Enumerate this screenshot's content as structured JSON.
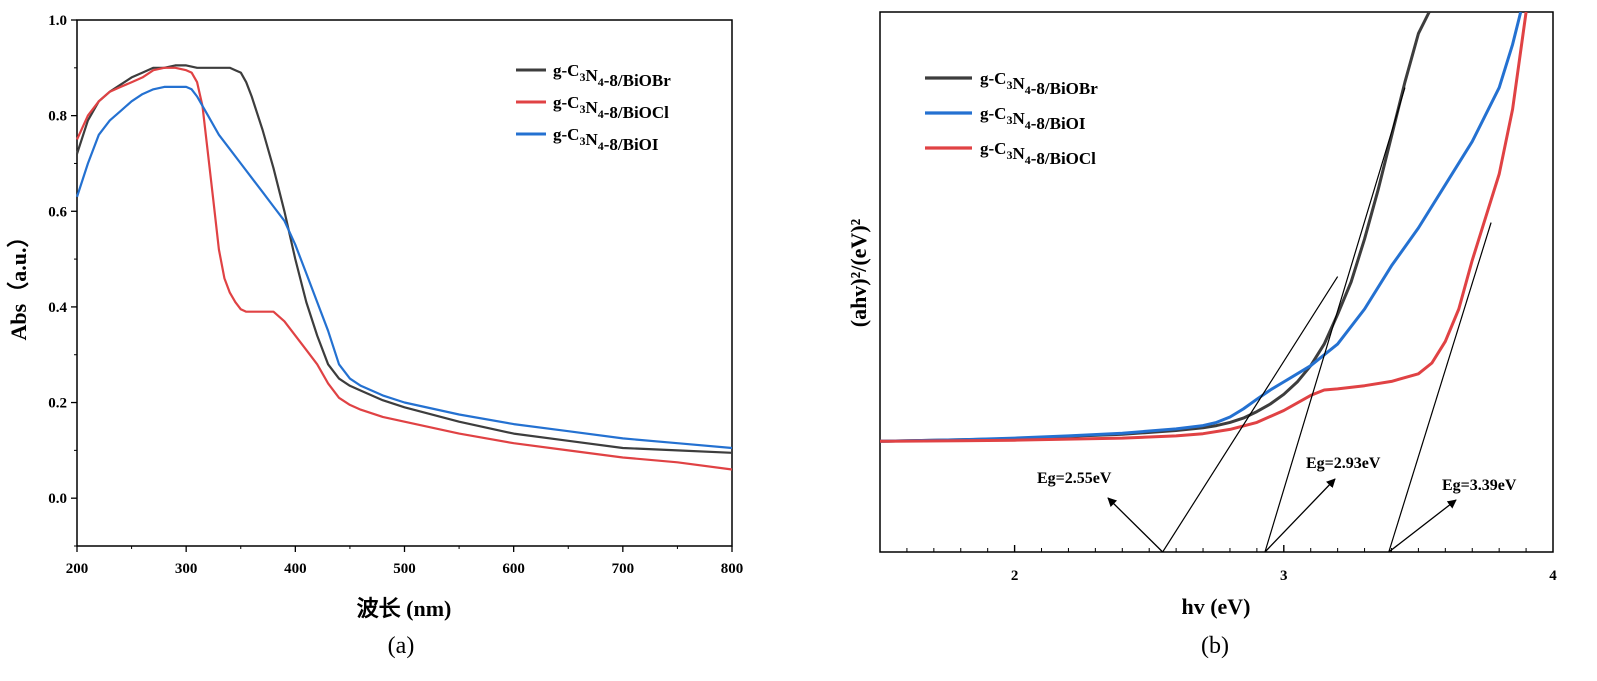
{
  "chart_data": [
    {
      "type": "line",
      "caption": "(a)",
      "xlabel": "波长 (nm)",
      "ylabel": "Abs（a.u.）",
      "xlim": [
        200,
        800
      ],
      "ylim": [
        -0.1,
        1.0
      ],
      "xticks": [
        "200",
        "300",
        "400",
        "500",
        "600",
        "700",
        "800"
      ],
      "yticks": [
        "0.0",
        "0.2",
        "0.4",
        "0.6",
        "0.8",
        "1.0"
      ],
      "legend_position": "top-right",
      "series": [
        {
          "name": "g-C₃N₄-8/BiOBr",
          "color": "#3d3d3d",
          "x": [
            200,
            210,
            220,
            230,
            240,
            250,
            260,
            270,
            280,
            290,
            300,
            310,
            320,
            330,
            340,
            345,
            350,
            355,
            360,
            370,
            380,
            390,
            400,
            410,
            420,
            430,
            440,
            450,
            460,
            480,
            500,
            550,
            600,
            650,
            700,
            750,
            800
          ],
          "y": [
            0.72,
            0.79,
            0.83,
            0.85,
            0.865,
            0.88,
            0.89,
            0.9,
            0.9,
            0.905,
            0.905,
            0.9,
            0.9,
            0.9,
            0.9,
            0.895,
            0.89,
            0.87,
            0.84,
            0.77,
            0.69,
            0.6,
            0.5,
            0.41,
            0.34,
            0.28,
            0.25,
            0.235,
            0.225,
            0.205,
            0.19,
            0.16,
            0.135,
            0.12,
            0.105,
            0.1,
            0.095
          ]
        },
        {
          "name": "g-C₃N₄-8/BiOCl",
          "color": "#e04244",
          "x": [
            200,
            210,
            220,
            230,
            240,
            250,
            260,
            270,
            280,
            290,
            300,
            305,
            310,
            315,
            320,
            325,
            330,
            335,
            340,
            345,
            350,
            355,
            360,
            370,
            380,
            390,
            400,
            410,
            420,
            430,
            440,
            450,
            460,
            480,
            500,
            550,
            600,
            650,
            700,
            750,
            800
          ],
          "y": [
            0.75,
            0.8,
            0.83,
            0.85,
            0.86,
            0.87,
            0.88,
            0.895,
            0.9,
            0.9,
            0.895,
            0.89,
            0.87,
            0.82,
            0.72,
            0.62,
            0.52,
            0.46,
            0.43,
            0.41,
            0.395,
            0.39,
            0.39,
            0.39,
            0.39,
            0.37,
            0.34,
            0.31,
            0.28,
            0.24,
            0.21,
            0.195,
            0.185,
            0.17,
            0.16,
            0.135,
            0.115,
            0.1,
            0.085,
            0.075,
            0.06
          ]
        },
        {
          "name": "g-C₃N₄-8/BiOI",
          "color": "#2471d1",
          "x": [
            200,
            210,
            220,
            230,
            240,
            250,
            260,
            270,
            280,
            290,
            300,
            305,
            310,
            320,
            330,
            340,
            350,
            360,
            370,
            380,
            390,
            400,
            410,
            420,
            430,
            440,
            450,
            460,
            480,
            500,
            550,
            600,
            650,
            700,
            750,
            800
          ],
          "y": [
            0.63,
            0.7,
            0.76,
            0.79,
            0.81,
            0.83,
            0.845,
            0.855,
            0.86,
            0.86,
            0.86,
            0.855,
            0.84,
            0.8,
            0.76,
            0.73,
            0.7,
            0.67,
            0.64,
            0.61,
            0.58,
            0.53,
            0.47,
            0.41,
            0.35,
            0.28,
            0.25,
            0.235,
            0.215,
            0.2,
            0.175,
            0.155,
            0.14,
            0.125,
            0.115,
            0.105
          ]
        }
      ]
    },
    {
      "type": "line",
      "caption": "(b)",
      "xlabel": "hv (eV)",
      "ylabel": "(ahv)²/(eV)²",
      "xlim": [
        1.5,
        4.0
      ],
      "ylim": [
        0,
        1.0
      ],
      "xticks": [
        "2",
        "3",
        "4"
      ],
      "legend_position": "top-left",
      "series": [
        {
          "name": "g-C₃N₄-8/BiOBr",
          "color": "#3d3d3d",
          "x": [
            1.5,
            1.8,
            2.0,
            2.2,
            2.4,
            2.6,
            2.7,
            2.75,
            2.8,
            2.85,
            2.9,
            2.95,
            3.0,
            3.05,
            3.1,
            3.15,
            3.2,
            3.25,
            3.3,
            3.35,
            3.4,
            3.45,
            3.5,
            3.54
          ],
          "y": [
            0.205,
            0.208,
            0.21,
            0.214,
            0.218,
            0.225,
            0.23,
            0.234,
            0.24,
            0.248,
            0.26,
            0.274,
            0.292,
            0.315,
            0.345,
            0.385,
            0.44,
            0.5,
            0.58,
            0.67,
            0.77,
            0.87,
            0.96,
            1.0
          ]
        },
        {
          "name": "g-C₃N₄-8/BiOI",
          "color": "#2471d1",
          "x": [
            1.5,
            1.8,
            2.0,
            2.2,
            2.4,
            2.6,
            2.7,
            2.75,
            2.8,
            2.85,
            2.9,
            2.95,
            3.0,
            3.1,
            3.2,
            3.3,
            3.4,
            3.5,
            3.6,
            3.7,
            3.8,
            3.85,
            3.88
          ],
          "y": [
            0.205,
            0.208,
            0.211,
            0.215,
            0.22,
            0.228,
            0.234,
            0.24,
            0.25,
            0.265,
            0.283,
            0.3,
            0.315,
            0.345,
            0.385,
            0.45,
            0.53,
            0.6,
            0.68,
            0.76,
            0.86,
            0.94,
            1.0
          ]
        },
        {
          "name": "g-C₃N₄-8/BiOCl",
          "color": "#e04244",
          "x": [
            1.5,
            1.8,
            2.0,
            2.2,
            2.4,
            2.6,
            2.7,
            2.8,
            2.9,
            3.0,
            3.1,
            3.15,
            3.2,
            3.3,
            3.4,
            3.5,
            3.55,
            3.6,
            3.65,
            3.7,
            3.75,
            3.8,
            3.85,
            3.9
          ],
          "y": [
            0.205,
            0.206,
            0.207,
            0.209,
            0.211,
            0.215,
            0.219,
            0.227,
            0.24,
            0.262,
            0.29,
            0.3,
            0.302,
            0.308,
            0.316,
            0.33,
            0.35,
            0.39,
            0.45,
            0.54,
            0.62,
            0.7,
            0.82,
            1.0
          ]
        }
      ],
      "tangent_lines": [
        {
          "x": [
            2.55,
            3.2
          ],
          "y": [
            0.0,
            0.51
          ]
        },
        {
          "x": [
            2.93,
            3.45
          ],
          "y": [
            0.0,
            0.86
          ]
        },
        {
          "x": [
            3.39,
            3.77
          ],
          "y": [
            0.0,
            0.61
          ]
        }
      ],
      "annotations": [
        {
          "text": "Eg=2.55eV",
          "x_eV": 2.55
        },
        {
          "text": "Eg=2.93eV",
          "x_eV": 2.93
        },
        {
          "text": "Eg=3.39eV",
          "x_eV": 3.39
        }
      ]
    }
  ]
}
